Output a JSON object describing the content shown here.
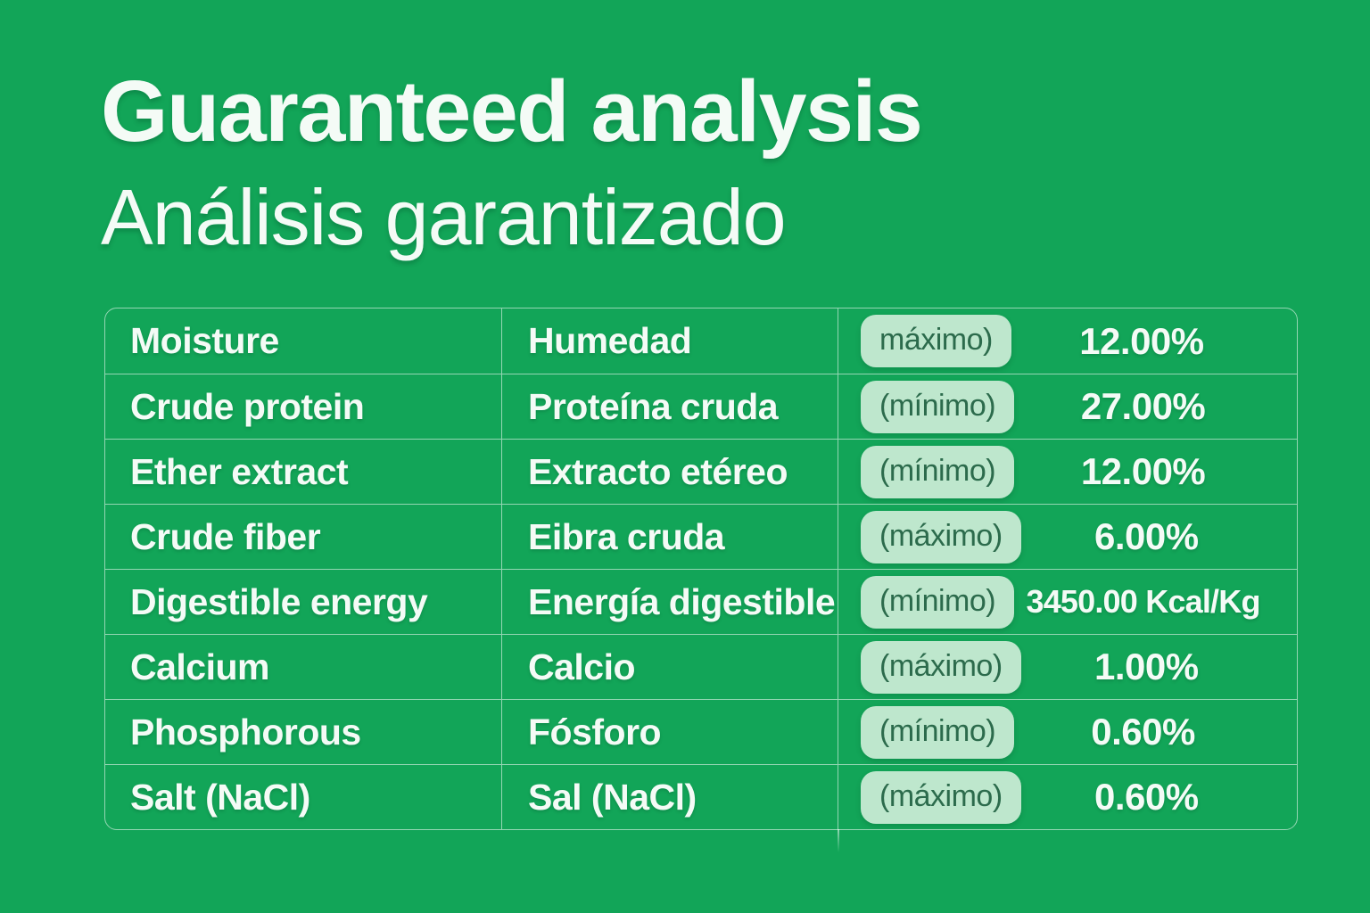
{
  "header": {
    "title": "Guaranteed analysis",
    "subtitle": "Análisis garantizado"
  },
  "table": {
    "rows": [
      {
        "en": "Moisture",
        "es": "Humedad",
        "limit": "máximo)",
        "value": "12.00%"
      },
      {
        "en": "Crude protein",
        "es": "Proteína cruda",
        "limit": "(mínimo)",
        "value": "27.00%"
      },
      {
        "en": "Ether extract",
        "es": "Extracto etéreo",
        "limit": "(mínimo)",
        "value": "12.00%"
      },
      {
        "en": "Crude fiber",
        "es": "Eibra cruda",
        "limit": "(máximo)",
        "value": "6.00%"
      },
      {
        "en": "Digestible energy",
        "es": "Energía digestible",
        "limit": "(mínimo)",
        "value": "3450.00 Kcal/Kg"
      },
      {
        "en": "Calcium",
        "es": "Calcio",
        "limit": "(máximo)",
        "value": "1.00%"
      },
      {
        "en": "Phosphorous",
        "es": "Fósforo",
        "limit": "(mínimo)",
        "value": "0.60%"
      },
      {
        "en": "Salt (NaCl)",
        "es": "Sal (NaCl)",
        "limit": "(máximo)",
        "value": "0.60%"
      }
    ]
  },
  "colors": {
    "background": "#12A558",
    "text": "#F4FBF6",
    "badge_background": "#BEE7CD",
    "badge_text": "#2C6B4C",
    "table_border": "rgba(255,255,255,0.55)"
  }
}
